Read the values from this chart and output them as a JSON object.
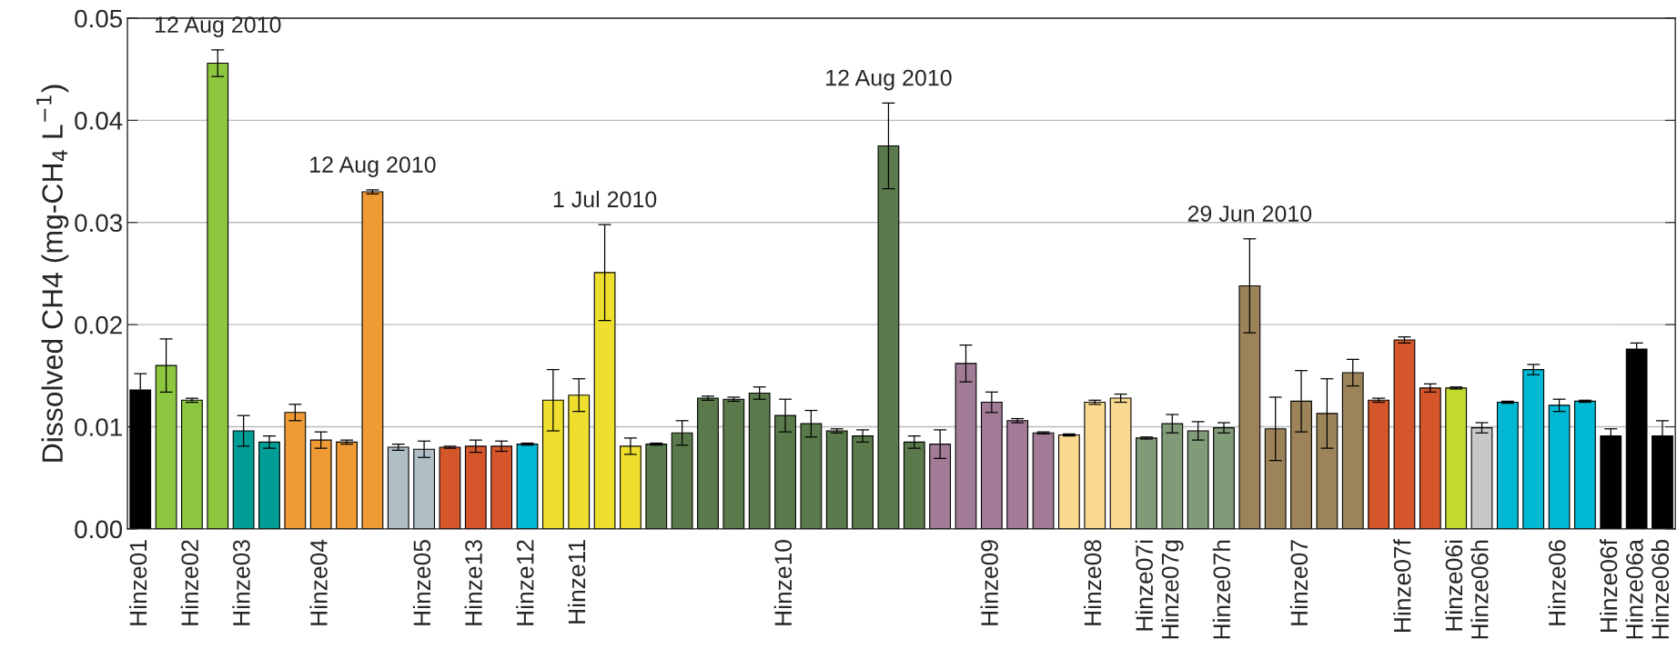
{
  "chart_data": {
    "type": "bar",
    "ylabel": "Dissolved CH4 (mg-CH$_{4}$ L$^{−1}$)",
    "categories": [
      "Hinze01",
      null,
      "Hinze02",
      null,
      "Hinze03",
      null,
      null,
      "Hinze04",
      null,
      null,
      null,
      "Hinze05",
      null,
      "Hinze13",
      null,
      "Hinze12",
      null,
      "Hinze11",
      null,
      null,
      null,
      null,
      null,
      null,
      null,
      "Hinze10",
      null,
      null,
      null,
      null,
      null,
      null,
      null,
      "Hinze09",
      null,
      null,
      null,
      "Hinze08",
      null,
      "Hinze07i",
      "Hinze07g",
      null,
      "Hinze07h",
      null,
      null,
      "Hinze07",
      null,
      null,
      null,
      "Hinze07f",
      null,
      "Hinze06i",
      "Hinze06h",
      null,
      null,
      "Hinze06",
      null,
      "Hinze06f",
      "Hinze06a",
      "Hinze06b"
    ],
    "values": [
      0.0136,
      0.016,
      0.0126,
      0.0456,
      0.0096,
      0.0085,
      0.0114,
      0.0087,
      0.0085,
      0.033,
      0.008,
      0.0078,
      0.008,
      0.0081,
      0.0081,
      0.0083,
      0.0126,
      0.0131,
      0.0251,
      0.0081,
      0.0083,
      0.0094,
      0.0128,
      0.0127,
      0.0133,
      0.0111,
      0.0103,
      0.0096,
      0.0091,
      0.0375,
      0.0085,
      0.0083,
      0.0162,
      0.0124,
      0.0106,
      0.0094,
      0.0092,
      0.0124,
      0.0128,
      0.0089,
      0.0103,
      0.0096,
      0.0099,
      0.0238,
      0.0098,
      0.0125,
      0.0113,
      0.0153,
      0.0126,
      0.0185,
      0.0138,
      0.0138,
      0.0099,
      0.0124,
      0.0156,
      0.0121,
      0.0125,
      0.0091,
      0.0176,
      0.0091
    ],
    "errors": [
      0.0016,
      0.0026,
      0.0002,
      0.0013,
      0.0015,
      0.0006,
      0.0008,
      0.0008,
      0.0002,
      0.0002,
      0.0003,
      0.0008,
      0.0001,
      0.0006,
      0.0005,
      0.0001,
      0.003,
      0.0016,
      0.0047,
      0.0008,
      0.0001,
      0.0012,
      0.0002,
      0.0002,
      0.0006,
      0.0016,
      0.0013,
      0.0002,
      0.0006,
      0.0042,
      0.0006,
      0.0014,
      0.0018,
      0.001,
      0.0002,
      0.0001,
      0.0001,
      0.0002,
      0.0004,
      0.0001,
      0.0009,
      0.0009,
      0.0005,
      0.0046,
      0.0031,
      0.003,
      0.0034,
      0.0013,
      0.0002,
      0.0003,
      0.0004,
      0.0001,
      0.0005,
      0.0001,
      0.0005,
      0.0006,
      0.0001,
      0.0007,
      0.0006,
      0.0015
    ],
    "colors": [
      "#000000",
      "#8dc63f",
      "#8dc63f",
      "#8dc63f",
      "#009e96",
      "#009e96",
      "#f09a36",
      "#f09a36",
      "#f09a36",
      "#f09a36",
      "#b0bec5",
      "#b0bec5",
      "#d6562b",
      "#d6562b",
      "#d6562b",
      "#00b8d4",
      "#eedf2f",
      "#eedf2f",
      "#eedf2f",
      "#eedf2f",
      "#5a7a4b",
      "#5a7a4b",
      "#5a7a4b",
      "#5a7a4b",
      "#5a7a4b",
      "#5a7a4b",
      "#5a7a4b",
      "#5a7a4b",
      "#5a7a4b",
      "#5a7a4b",
      "#5a7a4b",
      "#a27b97",
      "#a27b97",
      "#a27b97",
      "#a27b97",
      "#a27b97",
      "#f8d98f",
      "#f8d98f",
      "#f8d98f",
      "#819a78",
      "#819a78",
      "#819a78",
      "#819a78",
      "#9c8359",
      "#9c8359",
      "#9c8359",
      "#9c8359",
      "#9c8359",
      "#d6562b",
      "#d6562b",
      "#d6562b",
      "#c4d92e",
      "#c8c8c8",
      "#00b8d4",
      "#00b8d4",
      "#00b8d4",
      "#00b8d4",
      "#000000",
      "#000000",
      "#000000"
    ],
    "ylim": [
      0,
      0.05
    ],
    "yticks": [
      {
        "value": 0,
        "label": "0.00"
      },
      0.01,
      0.02,
      0.03,
      0.04,
      0.05
    ],
    "grid": "y",
    "annotations": [
      "12 Aug 2010",
      "12 Aug 2010",
      "1 Jul 2010",
      "12 Aug 2010",
      "29 Jun 2010"
    ]
  }
}
